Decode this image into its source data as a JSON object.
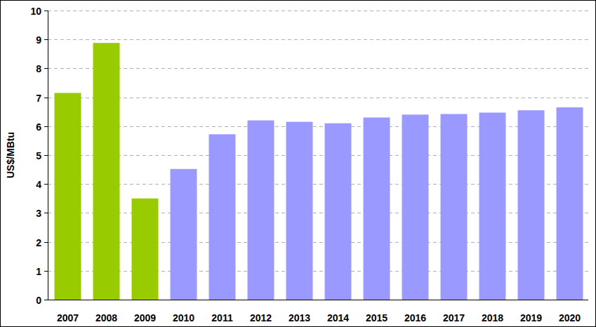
{
  "chart_data": {
    "type": "bar",
    "ylabel": "US$/MBtu",
    "categories": [
      "2007",
      "2008",
      "2009",
      "2010",
      "2011",
      "2012",
      "2013",
      "2014",
      "2015",
      "2016",
      "2017",
      "2018",
      "2019",
      "2020"
    ],
    "values": [
      7.15,
      8.88,
      3.5,
      4.52,
      5.72,
      6.2,
      6.15,
      6.1,
      6.3,
      6.4,
      6.42,
      6.47,
      6.55,
      6.65
    ],
    "colors": [
      "#99cc00",
      "#99cc00",
      "#99cc00",
      "#9999ff",
      "#9999ff",
      "#9999ff",
      "#9999ff",
      "#9999ff",
      "#9999ff",
      "#9999ff",
      "#9999ff",
      "#9999ff",
      "#9999ff",
      "#9999ff"
    ],
    "ylim": [
      0,
      10
    ],
    "yticks": [
      0,
      1,
      2,
      3,
      4,
      5,
      6,
      7,
      8,
      9,
      10
    ],
    "grid": true
  }
}
